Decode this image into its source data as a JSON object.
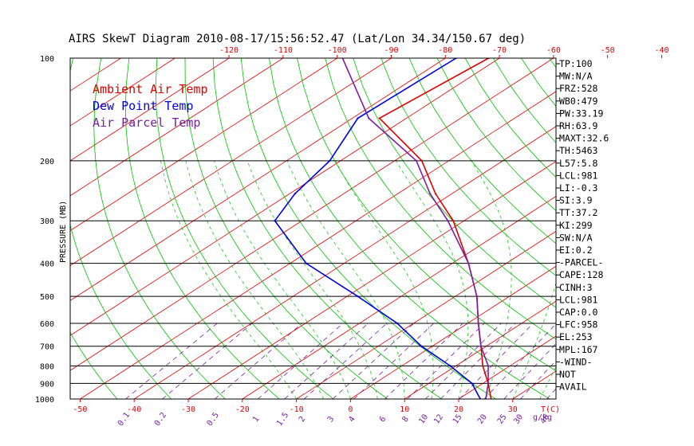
{
  "chart_data": {
    "type": "skew-t",
    "title": "AIRS SkewT Diagram 2010-08-17/15:56:52.47 (Lat/Lon 34.34/150.67 deg)",
    "ylabel": "PRESSURE (MB)",
    "xlabel": "T(C)",
    "mixing_ratio_label": "g/kg",
    "p_range": [
      100,
      1000
    ],
    "p_ticks": [
      {
        "p": 100,
        "label": "100"
      },
      {
        "p": 200,
        "label": "200"
      },
      {
        "p": 300,
        "label": "300"
      },
      {
        "p": 400,
        "label": "400"
      },
      {
        "p": 500,
        "label": "500"
      },
      {
        "p": 600,
        "label": "600"
      },
      {
        "p": 700,
        "label": "700"
      },
      {
        "p": 800,
        "label": "800"
      },
      {
        "p": 900,
        "label": "900"
      },
      {
        "p": 1000,
        "label": "1000"
      }
    ],
    "isobars": [
      200,
      300,
      400,
      500,
      600,
      700,
      800,
      900,
      1000
    ],
    "top_temp_ticks": [
      -120,
      -110,
      -100,
      -90,
      -80,
      -70,
      -60,
      -50,
      -40
    ],
    "bottom_temp_ticks": [
      -50,
      -40,
      -30,
      -20,
      -10,
      0,
      10,
      20,
      30
    ],
    "mixing_ratio_ticks": [
      "0.1",
      "0.2",
      "0.5",
      "1",
      "1.5",
      "2",
      "3",
      "4",
      "6",
      "8",
      "10",
      "12",
      "15",
      "20",
      "25",
      "30",
      "40"
    ],
    "legend": [
      {
        "label": "Ambient Air Temp",
        "color": "#e00000"
      },
      {
        "label": "Dew Point Temp",
        "color": "#0000e0"
      },
      {
        "label": "Air Parcel Temp",
        "color": "#7a1fa0"
      }
    ],
    "series": [
      {
        "name": "Ambient Air Temp",
        "color": "#e00000",
        "points": [
          {
            "p": 100,
            "t": -72
          },
          {
            "p": 150,
            "t": -75
          },
          {
            "p": 200,
            "t": -55
          },
          {
            "p": 250,
            "t": -43
          },
          {
            "p": 300,
            "t": -32
          },
          {
            "p": 400,
            "t": -17
          },
          {
            "p": 500,
            "t": -6
          },
          {
            "p": 600,
            "t": 2
          },
          {
            "p": 700,
            "t": 9
          },
          {
            "p": 800,
            "t": 15
          },
          {
            "p": 900,
            "t": 21
          },
          {
            "p": 1000,
            "t": 26
          }
        ]
      },
      {
        "name": "Dew Point Temp",
        "color": "#0000e0",
        "points": [
          {
            "p": 100,
            "t": -78
          },
          {
            "p": 150,
            "t": -79
          },
          {
            "p": 200,
            "t": -72
          },
          {
            "p": 250,
            "t": -69
          },
          {
            "p": 300,
            "t": -65
          },
          {
            "p": 400,
            "t": -47
          },
          {
            "p": 500,
            "t": -28
          },
          {
            "p": 600,
            "t": -13
          },
          {
            "p": 700,
            "t": -2
          },
          {
            "p": 800,
            "t": 9
          },
          {
            "p": 900,
            "t": 18
          },
          {
            "p": 1000,
            "t": 24
          }
        ]
      },
      {
        "name": "Air Parcel Temp",
        "color": "#7a1fa0",
        "points": [
          {
            "p": 100,
            "t": -99
          },
          {
            "p": 150,
            "t": -77
          },
          {
            "p": 200,
            "t": -56
          },
          {
            "p": 250,
            "t": -44
          },
          {
            "p": 300,
            "t": -33
          },
          {
            "p": 400,
            "t": -17
          },
          {
            "p": 500,
            "t": -6
          },
          {
            "p": 600,
            "t": 2
          },
          {
            "p": 700,
            "t": 9
          },
          {
            "p": 800,
            "t": 16
          },
          {
            "p": 900,
            "t": 21
          },
          {
            "p": 1000,
            "t": 25
          }
        ]
      }
    ],
    "indices": [
      "TP:100",
      "MW:N/A",
      "FRZ:528",
      "WB0:479",
      "PW:33.19",
      "RH:63.9",
      "MAXT:32.6",
      "TH:5463",
      "L57:5.8",
      "LCL:981",
      "LI:-0.3",
      "SI:3.9",
      "TT:37.2",
      "KI:299",
      "SW:N/A",
      "EI:0.2",
      "-PARCEL-",
      "CAPE:128",
      "CINH:3",
      "LCL:981",
      "CAP:0.0",
      "LFC:958",
      "EL:253",
      "MPL:167",
      "-WIND-",
      "NOT",
      "AVAIL"
    ]
  }
}
